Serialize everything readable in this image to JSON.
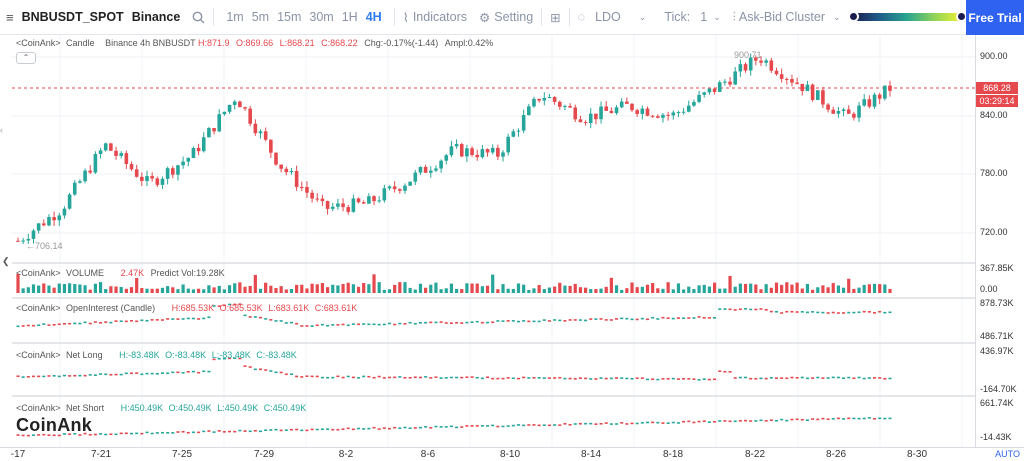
{
  "toolbar": {
    "symbol": "BNBUSDT_SPOT",
    "exchange": "Binance",
    "intervals": [
      "1m",
      "5m",
      "15m",
      "30m",
      "1H",
      "4H"
    ],
    "active_interval": "4H",
    "indicators_label": "Indicators",
    "setting_label": "Setting",
    "coin_label": "LDO",
    "tick_label": "Tick:",
    "tick_value": "1",
    "cluster_label": "Ask-Bid Cluster",
    "free_trial_label": "Free Trial"
  },
  "legends": {
    "main": {
      "prefix": "<CoinAnk>",
      "type": "Candle",
      "desc": "Binance 4h BNBUSDT",
      "h": "H:871.9",
      "o": "O:869.66",
      "l": "L:868.21",
      "c": "C:868.22",
      "chg": "Chg:-0.17%(-1.44)",
      "ampl": "Ampl:0.42%"
    },
    "volume": {
      "prefix": "<CoinAnk>",
      "name": "VOLUME",
      "value": "2.47K",
      "predict": "Predict Vol:19.28K"
    },
    "oi": {
      "prefix": "<CoinAnk>",
      "name": "OpenInterest (Candle)",
      "h": "H:685.53K",
      "o": "O:685.53K",
      "l": "L:683.61K",
      "c": "C:683.61K"
    },
    "netlong": {
      "prefix": "<CoinAnk>",
      "name": "Net Long",
      "h": "H:-83.48K",
      "o": "O:-83.48K",
      "l": "L:-83.48K",
      "c": "C:-83.48K"
    },
    "netshort": {
      "prefix": "<CoinAnk>",
      "name": "Net Short",
      "h": "H:450.49K",
      "o": "O:450.49K",
      "l": "L:450.49K",
      "c": "C:450.49K"
    }
  },
  "price_axis": {
    "main": [
      "900.00",
      "840.00",
      "780.00",
      "720.00"
    ],
    "volume": [
      "367.85K",
      "0.00"
    ],
    "oi": [
      "878.73K",
      "486.71K"
    ],
    "netlong": [
      "436.97K",
      "-164.70K"
    ],
    "netshort": [
      "661.74K",
      "-14.43K"
    ]
  },
  "markers": {
    "high": "900.71",
    "low": "706.14",
    "current_price": "868.28",
    "countdown": "03:29:14"
  },
  "time_axis": [
    "-17",
    "7-21",
    "7-25",
    "7-29",
    "8-2",
    "8-6",
    "8-10",
    "8-14",
    "8-18",
    "8-22",
    "8-26",
    "8-30"
  ],
  "auto_label": "AUTO",
  "watermark": "CoinAnk",
  "colors": {
    "up": "#26a69a",
    "down": "#e5484d",
    "accent": "#2f62f0"
  },
  "chart_data": {
    "type": "candlestick",
    "key_points": [
      {
        "x": "7-17",
        "y": 712
      },
      {
        "x": "7-21",
        "y": 745
      },
      {
        "x": "7-23",
        "y": 810
      },
      {
        "x": "7-25",
        "y": 770
      },
      {
        "x": "7-27",
        "y": 800
      },
      {
        "x": "7-28",
        "y": 860
      },
      {
        "x": "7-30",
        "y": 790
      },
      {
        "x": "8-2",
        "y": 745
      },
      {
        "x": "8-5",
        "y": 750
      },
      {
        "x": "8-8",
        "y": 775
      },
      {
        "x": "8-10",
        "y": 805
      },
      {
        "x": "8-12",
        "y": 800
      },
      {
        "x": "8-14",
        "y": 862
      },
      {
        "x": "8-16",
        "y": 838
      },
      {
        "x": "8-18",
        "y": 850
      },
      {
        "x": "8-20",
        "y": 840
      },
      {
        "x": "8-21",
        "y": 868
      },
      {
        "x": "8-23",
        "y": 900
      },
      {
        "x": "8-25",
        "y": 870
      },
      {
        "x": "8-26",
        "y": 838
      },
      {
        "x": "8-28",
        "y": 868
      }
    ],
    "ylim": [
      700,
      915
    ]
  }
}
